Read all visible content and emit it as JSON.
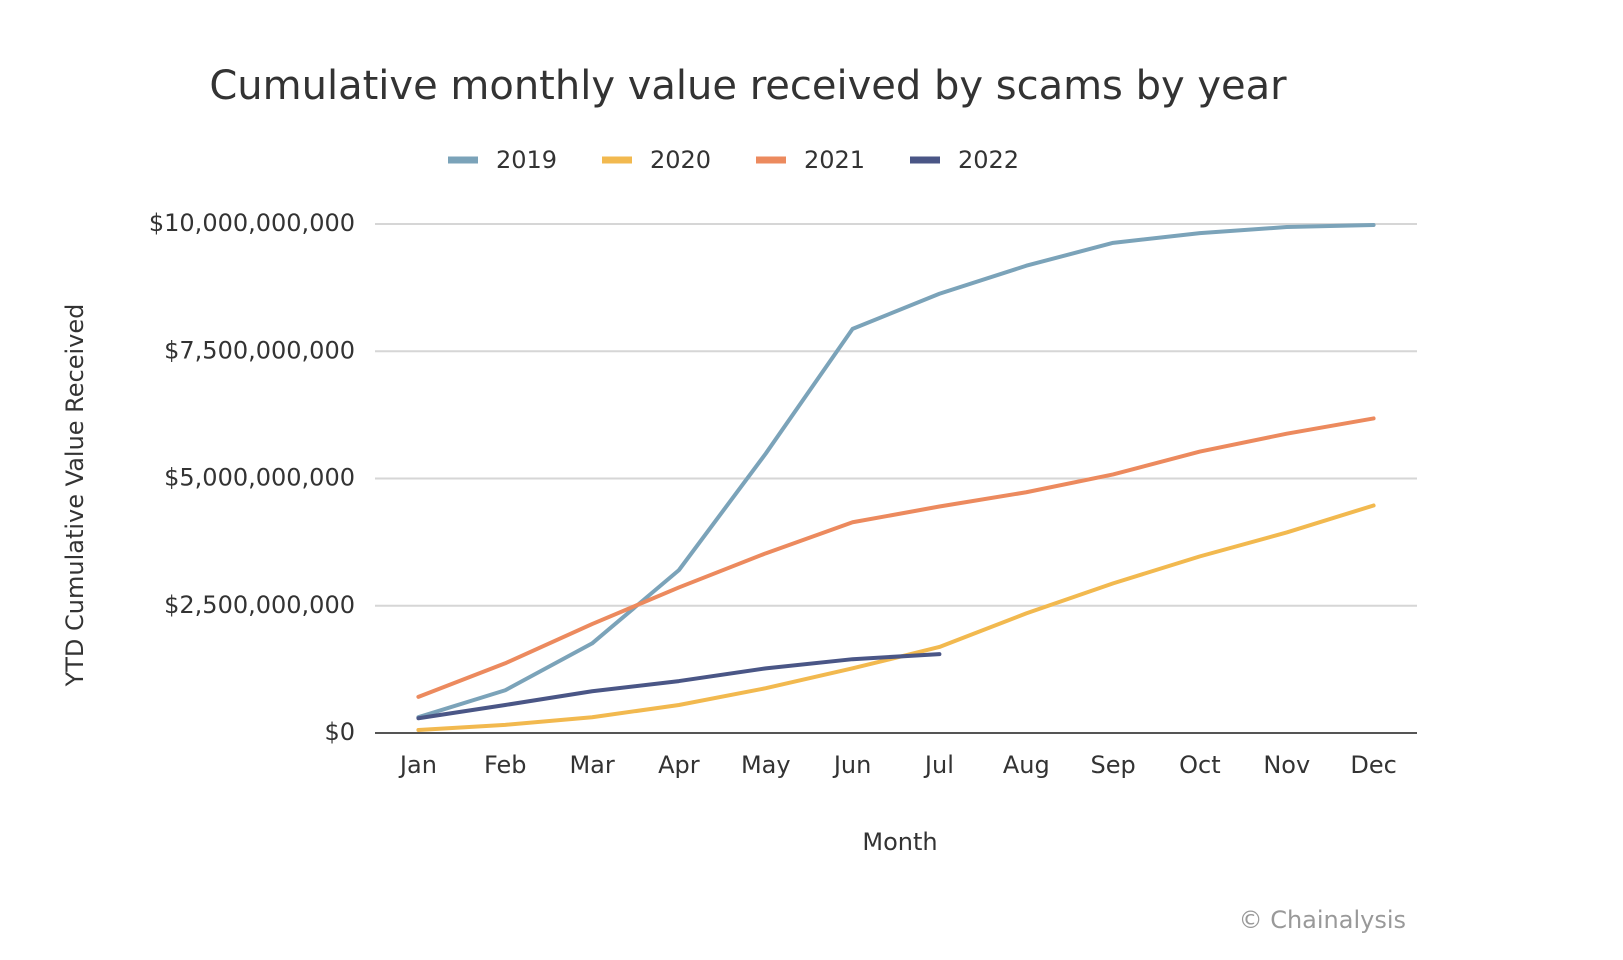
{
  "chart_data": {
    "type": "line",
    "title": "Cumulative monthly value received by scams by year",
    "x_label": "Month",
    "y_label": "YTD Cumulative Value Received",
    "source": "© Chainalysis",
    "categories": [
      "Jan",
      "Feb",
      "Mar",
      "Apr",
      "May",
      "Jun",
      "Jul",
      "Aug",
      "Sep",
      "Oct",
      "Nov",
      "Dec"
    ],
    "series": [
      {
        "name": "2019",
        "color": "#7ba3b9",
        "values": [
          310000000,
          840000000,
          1760000000,
          3200000000,
          5490000000,
          7940000000,
          8630000000,
          9180000000,
          9630000000,
          9820000000,
          9940000000,
          9980000000
        ]
      },
      {
        "name": "2020",
        "color": "#f2b94f",
        "values": [
          60000000,
          160000000,
          310000000,
          550000000,
          880000000,
          1270000000,
          1690000000,
          2350000000,
          2940000000,
          3470000000,
          3940000000,
          4470000000
        ]
      },
      {
        "name": "2021",
        "color": "#ec8a5e",
        "values": [
          710000000,
          1370000000,
          2140000000,
          2860000000,
          3530000000,
          4140000000,
          4450000000,
          4730000000,
          5080000000,
          5530000000,
          5880000000,
          6180000000
        ]
      },
      {
        "name": "2022",
        "color": "#4a5686",
        "values": [
          290000000,
          550000000,
          820000000,
          1020000000,
          1270000000,
          1450000000,
          1550000000,
          null,
          null,
          null,
          null,
          null
        ]
      }
    ],
    "ylim": [
      0,
      10000000000
    ],
    "yticks": [
      {
        "value": 0,
        "label": "$0"
      },
      {
        "value": 2500000000,
        "label": "$2,500,000,000"
      },
      {
        "value": 5000000000,
        "label": "$5,000,000,000"
      },
      {
        "value": 7500000000,
        "label": "$7,500,000,000"
      },
      {
        "value": 10000000000,
        "label": "$10,000,000,000"
      }
    ],
    "grid": true,
    "legend": "top"
  }
}
